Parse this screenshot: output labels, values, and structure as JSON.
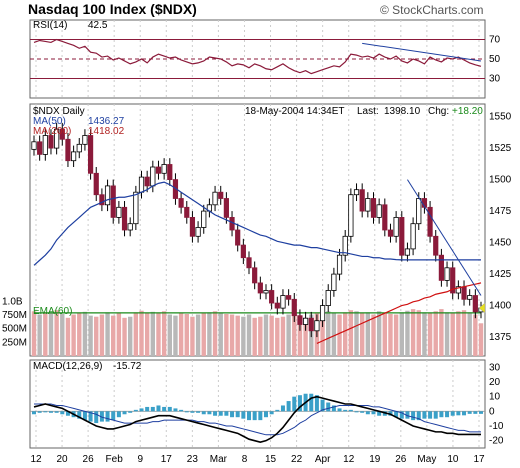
{
  "header": {
    "title": "Nasdaq 100 Index ($NDX)",
    "source": "© StockCharts.com"
  },
  "colors": {
    "up": "#ffffff",
    "down": "#8b1a3a",
    "ma50": "#1e3fa0",
    "ma200": "#d01010",
    "rsi": "#8b1a3a",
    "volume": "#e8a8a8",
    "volume_gray": "#b8b8b8",
    "ema_volume": "#1a8a1a",
    "macd": "#000000",
    "macd_signal": "#1e3fa0",
    "hist": "#3aa0c8",
    "trendline": "#1e3fa0"
  },
  "chart_data": [
    {
      "type": "line",
      "panel": "rsi",
      "label": "RSI(14)",
      "value_label": "42.5",
      "ylim": [
        10,
        90
      ],
      "guides": [
        70,
        50,
        30
      ],
      "ticks": [
        70,
        50,
        30
      ],
      "series": [
        {
          "name": "RSI(14)",
          "values": [
            67,
            69,
            68,
            67,
            70,
            68,
            66,
            64,
            61,
            63,
            57,
            56,
            52,
            53,
            49,
            51,
            48,
            45,
            47,
            50,
            46,
            52,
            55,
            53,
            51,
            52,
            49,
            47,
            45,
            46,
            48,
            52,
            51,
            50,
            47,
            43,
            45,
            44,
            41,
            45,
            43,
            40,
            39,
            42,
            45,
            41,
            38,
            36,
            38,
            35,
            37,
            39,
            41,
            43,
            42,
            47,
            55,
            54,
            52,
            53,
            51,
            55,
            52,
            50,
            53,
            48,
            46,
            50,
            48,
            45,
            52,
            49,
            47,
            51,
            50,
            52,
            49,
            46,
            44,
            42.5
          ]
        }
      ]
    },
    {
      "type": "candlestick",
      "panel": "price",
      "label": "$NDX Daily",
      "date_label": "18-May-2004 14:34ET",
      "last_label": "Last:",
      "last_value": "1398.10",
      "chg_label": "Chg:",
      "chg_value": "+18.20",
      "ylim": [
        1360,
        1560
      ],
      "ticks": [
        1550,
        1525,
        1500,
        1475,
        1450,
        1425,
        1400,
        1375
      ],
      "ma50_label": "MA(50)",
      "ma50_value": "1436.27",
      "ma200_label": "MA(200)",
      "ma200_value": "1418.02",
      "close": [
        1530,
        1520,
        1535,
        1525,
        1540,
        1532,
        1515,
        1522,
        1528,
        1535,
        1505,
        1488,
        1480,
        1495,
        1470,
        1478,
        1460,
        1465,
        1490,
        1502,
        1495,
        1510,
        1505,
        1512,
        1500,
        1485,
        1478,
        1470,
        1455,
        1462,
        1475,
        1480,
        1490,
        1485,
        1470,
        1460,
        1448,
        1438,
        1430,
        1418,
        1410,
        1412,
        1402,
        1398,
        1408,
        1405,
        1392,
        1385,
        1390,
        1380,
        1388,
        1400,
        1412,
        1425,
        1440,
        1455,
        1488,
        1492,
        1475,
        1485,
        1470,
        1480,
        1460,
        1455,
        1470,
        1440,
        1445,
        1465,
        1485,
        1478,
        1455,
        1440,
        1420,
        1430,
        1410,
        1415,
        1405,
        1408,
        1395,
        1398.1
      ],
      "ma50": [
        1432,
        1436,
        1440,
        1445,
        1452,
        1457,
        1462,
        1466,
        1470,
        1474,
        1478,
        1480,
        1482,
        1484,
        1485,
        1486,
        1486,
        1487,
        1488,
        1490,
        1492,
        1495,
        1497,
        1498,
        1496,
        1493,
        1490,
        1487,
        1484,
        1481,
        1478,
        1475,
        1472,
        1470,
        1468,
        1466,
        1464,
        1462,
        1460,
        1458,
        1456,
        1455,
        1453,
        1451,
        1450,
        1449,
        1448,
        1448,
        1447,
        1446,
        1446,
        1445,
        1444,
        1443,
        1442,
        1442,
        1441,
        1440,
        1439,
        1439,
        1438,
        1438,
        1437,
        1437,
        1436.5,
        1436.27,
        1436.27,
        1436.27,
        1436.27,
        1436.27,
        1436.27,
        1436.27,
        1436.27,
        1436.27,
        1436.27,
        1436.27,
        1436.27,
        1436.27,
        1436.27,
        1436.27
      ],
      "ma200": [
        1370,
        1372,
        1374,
        1376,
        1378,
        1380,
        1382,
        1384,
        1386,
        1388,
        1390,
        1392,
        1394,
        1396,
        1398,
        1400,
        1401,
        1403,
        1404,
        1406,
        1407,
        1409,
        1410,
        1411,
        1413,
        1414,
        1415,
        1416,
        1417,
        1418.02
      ]
    },
    {
      "type": "bar",
      "panel": "volume",
      "ema_label": "EMA(60)",
      "ticks": [
        "1.0B",
        "750M",
        "500M",
        "250M"
      ],
      "ylim": [
        0,
        1100
      ],
      "values": [
        820,
        760,
        800,
        790,
        840,
        770,
        700,
        760,
        790,
        810,
        740,
        720,
        760,
        800,
        740,
        780,
        700,
        720,
        800,
        830,
        790,
        810,
        780,
        820,
        760,
        740,
        790,
        770,
        720,
        760,
        780,
        800,
        820,
        790,
        770,
        760,
        740,
        720,
        760,
        700,
        720,
        760,
        740,
        700,
        720,
        760,
        780,
        740,
        700,
        760,
        800,
        780,
        820,
        790,
        760,
        800,
        840,
        820,
        780,
        800,
        760,
        820,
        790,
        770,
        760,
        800,
        830,
        860,
        840,
        800,
        780,
        820,
        860,
        800,
        780,
        820,
        840,
        800,
        760,
        600
      ],
      "ema": [
        790,
        790,
        790,
        790,
        790,
        790,
        790,
        790,
        790,
        790,
        790,
        790,
        790,
        790,
        790,
        790,
        790,
        790,
        790,
        790,
        790,
        790,
        790,
        790,
        790,
        790,
        790,
        790,
        790,
        790,
        790,
        790,
        790,
        790,
        790,
        790,
        790,
        790,
        790,
        790,
        790,
        790,
        790,
        790,
        790,
        790,
        790,
        790,
        790,
        790,
        790,
        790,
        790,
        790,
        790,
        790,
        790,
        790,
        790,
        790,
        790,
        790,
        790,
        790,
        790,
        790,
        790,
        790,
        790,
        790,
        790,
        790,
        790,
        790,
        790,
        790,
        790,
        790,
        790,
        790
      ]
    },
    {
      "type": "line",
      "panel": "macd",
      "label": "MACD(12,26,9)",
      "value_label": "-15.72",
      "ylim": [
        -25,
        35
      ],
      "ticks": [
        30,
        20,
        10,
        0,
        -10,
        -20
      ],
      "macd": [
        3,
        4,
        5,
        4,
        3,
        2,
        0,
        -2,
        -4,
        -6,
        -8,
        -10,
        -11,
        -12,
        -12,
        -11,
        -10,
        -9,
        -7,
        -6,
        -5,
        -4,
        -3,
        -3,
        -3,
        -4,
        -5,
        -6,
        -7,
        -8,
        -9,
        -10,
        -11,
        -12,
        -13,
        -14,
        -15,
        -17,
        -19,
        -20,
        -21,
        -20,
        -18,
        -15,
        -11,
        -6,
        -1,
        3,
        6,
        9,
        10,
        9,
        8,
        7,
        6,
        5,
        5,
        4,
        3,
        2,
        1,
        0,
        -1,
        -2,
        -4,
        -6,
        -8,
        -10,
        -11,
        -12,
        -13,
        -14,
        -14,
        -15,
        -15,
        -15.72,
        -15.72,
        -15.72,
        -15.72,
        -15.72
      ],
      "signal": [
        5,
        5,
        5,
        5,
        4,
        4,
        3,
        2,
        1,
        0,
        -1,
        -2,
        -4,
        -5,
        -6,
        -7,
        -8,
        -8,
        -8,
        -8,
        -8,
        -7,
        -7,
        -6,
        -6,
        -6,
        -6,
        -6,
        -6,
        -7,
        -7,
        -8,
        -8,
        -9,
        -10,
        -10,
        -11,
        -12,
        -13,
        -14,
        -15,
        -16,
        -16,
        -16,
        -15,
        -13,
        -11,
        -8,
        -6,
        -3,
        -1,
        1,
        2,
        3,
        4,
        4,
        4,
        4,
        4,
        4,
        3,
        3,
        2,
        1,
        0,
        -1,
        -3,
        -4,
        -5,
        -7,
        -8,
        -9,
        -10,
        -11,
        -12,
        -13,
        -13,
        -14,
        -14,
        -14
      ]
    }
  ],
  "x_axis": {
    "labels": [
      "12",
      "20",
      "26",
      "Feb",
      "9",
      "17",
      "23",
      "Mar",
      "8",
      "15",
      "22",
      "Apr",
      "12",
      "19",
      "26",
      "May",
      "10",
      "17"
    ]
  }
}
